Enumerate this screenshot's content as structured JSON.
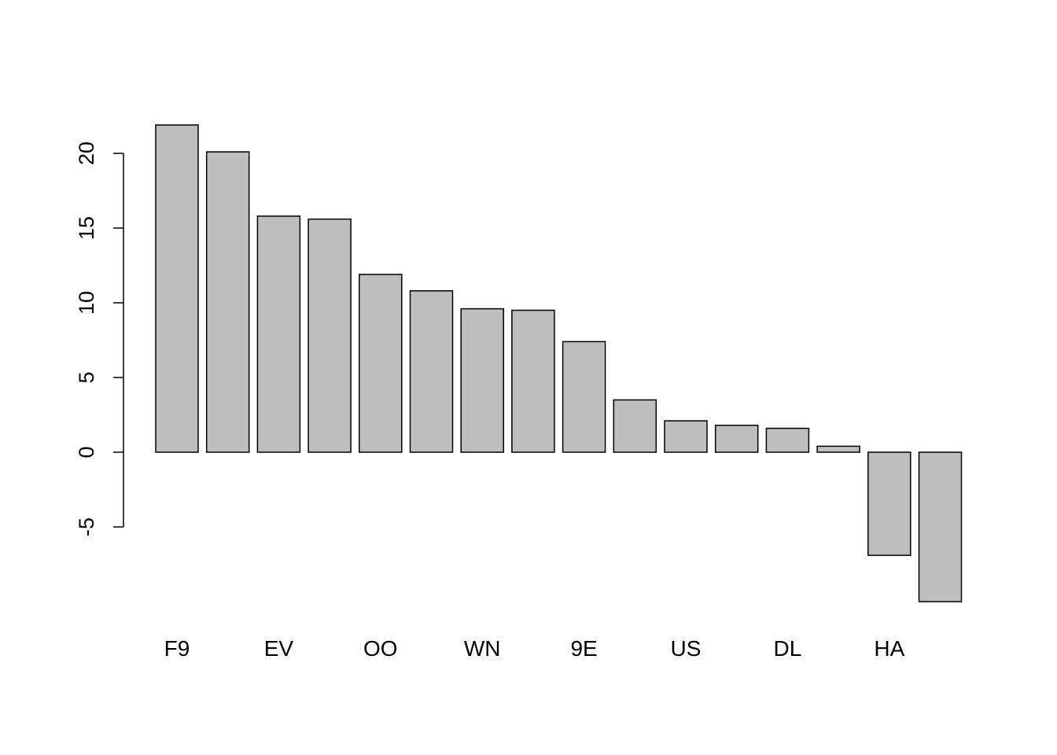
{
  "chart_data": {
    "type": "bar",
    "categories": [
      "F9",
      "",
      "EV",
      "",
      "OO",
      "",
      "WN",
      "",
      "9E",
      "",
      "US",
      "",
      "DL",
      "",
      "HA",
      ""
    ],
    "values": [
      21.9,
      20.1,
      15.8,
      15.6,
      11.9,
      10.8,
      9.6,
      9.5,
      7.4,
      3.5,
      2.1,
      1.8,
      1.6,
      0.4,
      -6.9,
      -10.0
    ],
    "title": "",
    "xlabel": "",
    "ylabel": "",
    "yticks": [
      -5,
      0,
      5,
      10,
      15,
      20
    ],
    "ytick_labels": [
      "-5",
      "0",
      "5",
      "10",
      "15",
      "20"
    ],
    "ylim": [
      -10,
      22
    ],
    "grid": false,
    "bar_color": "#bebebe",
    "bar_border_color": "#000000"
  }
}
